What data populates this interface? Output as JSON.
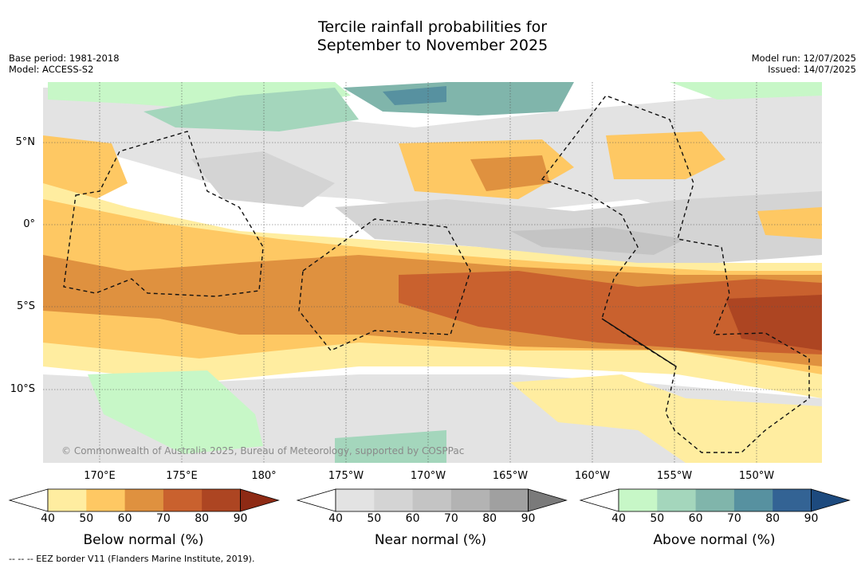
{
  "title_line1": "Tercile rainfall probabilities for",
  "title_line2": "September to November 2025",
  "base_period": "Base period: 1981-2018",
  "model": "Model: ACCESS-S2",
  "model_run": "Model run: 12/07/2025",
  "issued": "Issued: 14/07/2025",
  "credit": "© Commonwealth of Australia 2025, Bureau of Meteorology, supported by COSPPac",
  "eez_note": "--  --  -- EEZ border V11 (Flanders Marine Institute, 2019).",
  "lat_labels": [
    "5°N",
    "0°",
    "5°S",
    "10°S"
  ],
  "lon_labels": [
    "170°E",
    "175°E",
    "180°",
    "175°W",
    "170°W",
    "165°W",
    "160°W",
    "155°W",
    "150°W"
  ],
  "legends": [
    {
      "caption": "Below normal (%)",
      "ticks": [
        "40",
        "50",
        "60",
        "70",
        "80",
        "90"
      ],
      "colors": [
        "#ffeda0",
        "#fec863",
        "#df913f",
        "#c9612e",
        "#ad4522",
        "#8e2a14"
      ]
    },
    {
      "caption": "Near normal (%)",
      "ticks": [
        "40",
        "50",
        "60",
        "70",
        "80",
        "90"
      ],
      "colors": [
        "#e3e3e3",
        "#d4d4d4",
        "#c4c4c4",
        "#b3b3b3",
        "#a0a0a0",
        "#7a7a7a"
      ]
    },
    {
      "caption": "Above normal (%)",
      "ticks": [
        "40",
        "50",
        "60",
        "70",
        "80",
        "90"
      ],
      "colors": [
        "#c7f7c7",
        "#a4d6bc",
        "#80b5ab",
        "#5791a0",
        "#336394",
        "#1d4a7e"
      ]
    }
  ]
}
